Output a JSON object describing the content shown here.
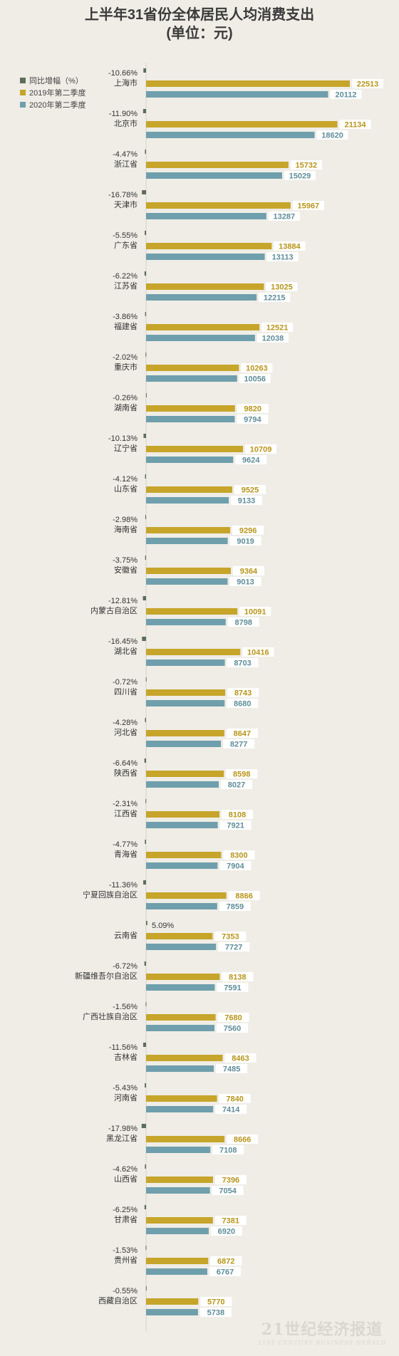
{
  "chart_data": {
    "type": "bar",
    "orientation": "horizontal",
    "title": [
      "上半年31省份全体居民人均消费支出",
      "(单位：元)"
    ],
    "legend_position": "top-left",
    "categories": [
      "上海市",
      "北京市",
      "浙江省",
      "天津市",
      "广东省",
      "江苏省",
      "福建省",
      "重庆市",
      "湖南省",
      "辽宁省",
      "山东省",
      "海南省",
      "安徽省",
      "内蒙古自治区",
      "湖北省",
      "四川省",
      "河北省",
      "陕西省",
      "江西省",
      "青海省",
      "宁夏回族自治区",
      "云南省",
      "新疆维吾尔自治区",
      "广西壮族自治区",
      "吉林省",
      "河南省",
      "黑龙江省",
      "山西省",
      "甘肃省",
      "贵州省",
      "西藏自治区"
    ],
    "series": [
      {
        "name": "同比增幅（%）",
        "color": "#5c6e58",
        "labels": [
          "-10.66%",
          "-11.90%",
          "-4.47%",
          "-16.78%",
          "-5.55%",
          "-6.22%",
          "-3.86%",
          "-2.02%",
          "-0.26%",
          "-10.13%",
          "-4.12%",
          "-2.98%",
          "-3.75%",
          "-12.81%",
          "-16.45%",
          "-0.72%",
          "-4.28%",
          "-6.64%",
          "-2.31%",
          "-4.77%",
          "-11.36%",
          "5.09%",
          "-6.72%",
          "-1.56%",
          "-11.56%",
          "-5.43%",
          "-17.98%",
          "-4.62%",
          "-6.25%",
          "-1.53%",
          "-0.55%"
        ],
        "values": [
          -10.66,
          -11.9,
          -4.47,
          -16.78,
          -5.55,
          -6.22,
          -3.86,
          -2.02,
          -0.26,
          -10.13,
          -4.12,
          -2.98,
          -3.75,
          -12.81,
          -16.45,
          -0.72,
          -4.28,
          -6.64,
          -2.31,
          -4.77,
          -11.36,
          5.09,
          -6.72,
          -1.56,
          -11.56,
          -5.43,
          -17.98,
          -4.62,
          -6.25,
          -1.53,
          -0.55
        ]
      },
      {
        "name": "2019年第二季度",
        "color": "#c6a52a",
        "values": [
          22513,
          21134,
          15732,
          15967,
          13884,
          13025,
          12521,
          10263,
          9820,
          10709,
          9525,
          9296,
          9364,
          10091,
          10416,
          8743,
          8647,
          8598,
          8108,
          8300,
          8866,
          7353,
          8138,
          7680,
          8463,
          7840,
          8666,
          7396,
          7381,
          6872,
          5770
        ]
      },
      {
        "name": "2020年第二季度",
        "color": "#6f9fac",
        "values": [
          20112,
          18620,
          15029,
          13287,
          13113,
          12215,
          12038,
          10056,
          9794,
          9624,
          9133,
          9019,
          9013,
          8798,
          8703,
          8680,
          8277,
          8027,
          7921,
          7904,
          7859,
          7727,
          7591,
          7560,
          7485,
          7414,
          7108,
          7054,
          6920,
          6767,
          5738
        ]
      }
    ]
  },
  "brand": {
    "main": "21世纪经济报道",
    "sub": "21ST CENTURY BUSINESS HERALD"
  }
}
